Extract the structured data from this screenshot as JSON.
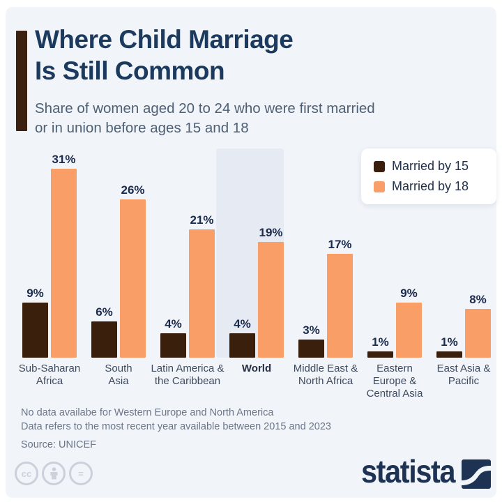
{
  "colors": {
    "card_bg": "#f1f4f9",
    "accent_bar": "#3c2010",
    "married_by_15": "#3a1f0d",
    "married_by_18": "#f89e66",
    "title": "#1b3a5e",
    "subtitle": "#4e6075",
    "value_label": "#1b2b4d",
    "category_label": "#3e4a5e",
    "footnote": "#6b7688",
    "world_band": "#e6eaf3",
    "brand_navy": "#1e3354",
    "license_gray": "#cbd0da"
  },
  "header": {
    "title_lines": [
      "Where Child Marriage",
      "Is Still Common"
    ],
    "subtitle_lines": [
      "Share of women aged 20 to 24 who were first married",
      "or in union before ages 15 and 18"
    ]
  },
  "legend": {
    "items": [
      {
        "label": "Married by 15",
        "color": "#3a1f0d"
      },
      {
        "label": "Married by 18",
        "color": "#f89e66"
      }
    ]
  },
  "chart_data": {
    "type": "bar",
    "title": "Where Child Marriage Is Still Common",
    "subtitle": "Share of women aged 20 to 24 who were first married or in union before ages 15 and 18",
    "categories": [
      "Sub-Saharan Africa",
      "South Asia",
      "Latin America & the Caribbean",
      "World",
      "Middle East & North Africa",
      "Eastern Europe & Central Asia",
      "East Asia & Pacific"
    ],
    "categories_display_lines": [
      [
        "Sub-Saharan",
        "Africa"
      ],
      [
        "South",
        "Asia"
      ],
      [
        "Latin America &",
        "the Caribbean"
      ],
      [
        "World"
      ],
      [
        "Middle East &",
        "North Africa"
      ],
      [
        "Eastern",
        "Europe &",
        "Central Asia"
      ],
      [
        "East Asia &",
        "Pacific"
      ]
    ],
    "series": [
      {
        "name": "Married by 15",
        "color": "#3a1f0d",
        "values": [
          9,
          6,
          4,
          4,
          3,
          1,
          1
        ]
      },
      {
        "name": "Married by 18",
        "color": "#f89e66",
        "values": [
          31,
          26,
          21,
          19,
          17,
          9,
          8
        ]
      }
    ],
    "value_suffix": "%",
    "highlighted_category": "World",
    "ylim": [
      0,
      33
    ],
    "grid": false,
    "axes_shown": false,
    "legend_position": "top-right"
  },
  "footnotes": [
    "No data availabe for Western Europe and North America",
    "Data refers to the most recent year available between 2015 and 2023"
  ],
  "source": "Source: UNICEF",
  "branding": {
    "logo_text": "statista",
    "license_icons": [
      "cc-icon",
      "attribution-person-icon",
      "equals-icon"
    ]
  }
}
